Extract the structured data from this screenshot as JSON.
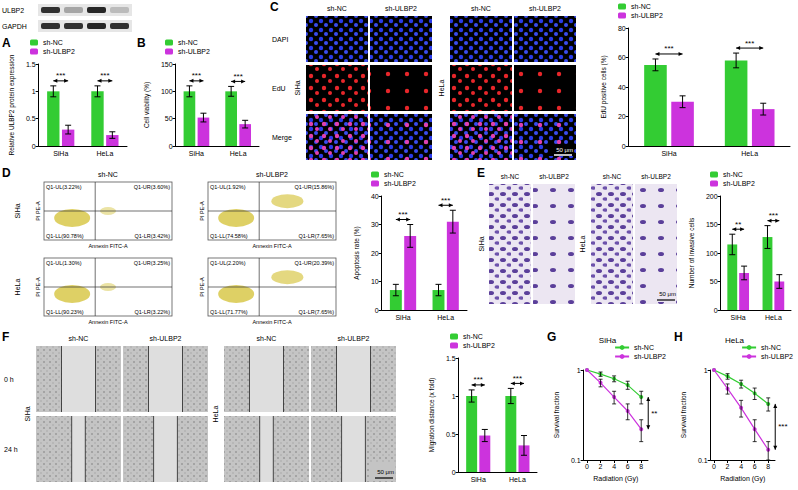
{
  "chart_data": [
    {
      "panel": "A",
      "type": "bar",
      "y_label": "Relative ULBP2 protein expression",
      "categories": [
        "SiHa",
        "HeLa"
      ],
      "series": [
        {
          "name": "sh-NC",
          "color": "#33cc33",
          "values": [
            1.0,
            1.0
          ],
          "errors": [
            0.1,
            0.1
          ]
        },
        {
          "name": "sh-ULBP2",
          "color": "#cc33dd",
          "values": [
            0.3,
            0.2
          ],
          "errors": [
            0.08,
            0.06
          ]
        }
      ],
      "annotations": [
        "***",
        "***"
      ],
      "ylim": [
        0,
        1.5
      ],
      "yticks": [
        0,
        0.5,
        1,
        1.5
      ],
      "legend": "top-left",
      "grid": false
    },
    {
      "panel": "B",
      "type": "bar",
      "y_label": "Cell viability (%)",
      "categories": [
        "SiHa",
        "HeLa"
      ],
      "series": [
        {
          "name": "sh-NC",
          "color": "#33cc33",
          "values": [
            100,
            100
          ],
          "errors": [
            10,
            9
          ]
        },
        {
          "name": "sh-ULBP2",
          "color": "#cc33dd",
          "values": [
            52,
            40
          ],
          "errors": [
            8,
            7
          ]
        }
      ],
      "annotations": [
        "***",
        "***"
      ],
      "ylim": [
        0,
        150
      ],
      "yticks": [
        0,
        50,
        100,
        150
      ],
      "legend": "top-left",
      "grid": false
    },
    {
      "type": "bar",
      "y_label": "EdU positive cells (%)",
      "categories": [
        "SiHa",
        "HeLa"
      ],
      "series": [
        {
          "name": "sh-NC",
          "color": "#33cc33",
          "values": [
            55,
            58
          ],
          "errors": [
            4,
            5
          ]
        },
        {
          "name": "sh-ULBP2",
          "color": "#cc33dd",
          "values": [
            30,
            25
          ],
          "errors": [
            4,
            4
          ]
        }
      ],
      "annotations": [
        "***",
        "***"
      ],
      "ylim": [
        0,
        80
      ],
      "yticks": [
        0,
        20,
        40,
        60,
        80
      ],
      "legend": "top-left",
      "grid": false
    },
    {
      "type": "bar",
      "y_label": "Apoptosis rate (%)",
      "categories": [
        "SiHa",
        "HeLa"
      ],
      "series": [
        {
          "name": "sh-NC",
          "color": "#33cc33",
          "values": [
            7,
            7
          ],
          "errors": [
            2,
            2
          ]
        },
        {
          "name": "sh-ULBP2",
          "color": "#cc33dd",
          "values": [
            26,
            31
          ],
          "errors": [
            4,
            4
          ]
        }
      ],
      "annotations": [
        "***",
        "***"
      ],
      "ylim": [
        0,
        40
      ],
      "yticks": [
        0,
        10,
        20,
        30,
        40
      ],
      "legend": "top-left",
      "grid": false
    },
    {
      "type": "bar",
      "y_label": "Number of invasive cells",
      "categories": [
        "SiHa",
        "HeLa"
      ],
      "series": [
        {
          "name": "sh-NC",
          "color": "#33cc33",
          "values": [
            115,
            128
          ],
          "errors": [
            18,
            20
          ]
        },
        {
          "name": "sh-ULBP2",
          "color": "#cc33dd",
          "values": [
            65,
            50
          ],
          "errors": [
            12,
            12
          ]
        }
      ],
      "annotations": [
        "**",
        "***"
      ],
      "ylim": [
        0,
        200
      ],
      "yticks": [
        0,
        50,
        100,
        150,
        200
      ],
      "legend": "top-left",
      "grid": false
    },
    {
      "type": "bar",
      "y_label": "Migration distance (x fold)",
      "categories": [
        "SiHa",
        "HeLa"
      ],
      "series": [
        {
          "name": "sh-NC",
          "color": "#33cc33",
          "values": [
            1.0,
            1.0
          ],
          "errors": [
            0.08,
            0.1
          ]
        },
        {
          "name": "sh-ULBP2",
          "color": "#cc33dd",
          "values": [
            0.48,
            0.35
          ],
          "errors": [
            0.08,
            0.13
          ]
        }
      ],
      "annotations": [
        "***",
        "***"
      ],
      "ylim": [
        0,
        1.5
      ],
      "yticks": [
        0,
        0.5,
        1,
        1.5
      ],
      "legend": "top-left",
      "grid": false
    },
    {
      "panel": "G",
      "type": "line",
      "title": "SiHa",
      "x_label": "Radiation (Gy)",
      "y_label": "Survival fraction",
      "x": [
        0,
        2,
        4,
        6,
        8
      ],
      "series": [
        {
          "name": "sh-NC",
          "color": "#33cc33",
          "values": [
            1.0,
            0.9,
            0.8,
            0.68,
            0.5
          ],
          "errors": [
            0,
            0.05,
            0.06,
            0.07,
            0.08
          ]
        },
        {
          "name": "sh-ULBP2",
          "color": "#cc33dd",
          "values": [
            1.0,
            0.72,
            0.5,
            0.35,
            0.22
          ],
          "errors": [
            0,
            0.07,
            0.08,
            0.07,
            0.06
          ]
        }
      ],
      "annotations": [
        "**"
      ],
      "xlim": [
        -0.5,
        9
      ],
      "xticks": [
        0,
        2,
        4,
        6,
        8
      ],
      "ylim": [
        0.1,
        1
      ],
      "yticks": [
        0.1,
        1
      ],
      "log": "y",
      "marker": "circle",
      "line_style": "solid",
      "legend": "top-right",
      "grid": false
    },
    {
      "panel": "H",
      "type": "line",
      "title": "HeLa",
      "x_label": "Radiation (Gy)",
      "y_label": "Survival fraction",
      "x": [
        0,
        2,
        4,
        6,
        8
      ],
      "series": [
        {
          "name": "sh-NC",
          "color": "#33cc33",
          "values": [
            1.0,
            0.85,
            0.7,
            0.55,
            0.42
          ],
          "errors": [
            0,
            0.06,
            0.07,
            0.08,
            0.07
          ]
        },
        {
          "name": "sh-ULBP2",
          "color": "#cc33dd",
          "values": [
            1.0,
            0.62,
            0.38,
            0.22,
            0.13
          ],
          "errors": [
            0,
            0.08,
            0.08,
            0.06,
            0.03
          ]
        }
      ],
      "annotations": [
        "***"
      ],
      "xlim": [
        -0.5,
        9
      ],
      "xticks": [
        0,
        2,
        4,
        6,
        8
      ],
      "ylim": [
        0.1,
        1
      ],
      "yticks": [
        0.1,
        1
      ],
      "log": "y",
      "marker": "circle",
      "line_style": "solid",
      "legend": "top-right",
      "grid": false
    }
  ],
  "image_panels": {
    "blot": {
      "rows": [
        "ULBP2",
        "GAPDH"
      ]
    },
    "C": {
      "panel": "C",
      "rows": [
        "DAPI",
        "EdU",
        "Merge"
      ],
      "cell_lines": [
        "SiHa",
        "HeLa"
      ],
      "groups": [
        "sh-NC",
        "sh-ULBP2"
      ],
      "scale_bar": "50 μm"
    },
    "D": {
      "panel": "D",
      "cell_lines": [
        "SiHa",
        "HeLa"
      ],
      "groups": [
        "sh-NC",
        "sh-ULBP2"
      ],
      "x_label": "Annexin FITC-A",
      "y_label": "PI PE-A",
      "quadrants": [
        [
          [
            "Q1-UL(3.22%)",
            "Q1-UR(3.60%)",
            "Q1-LL(90.78%)",
            "Q1-LR(3.42%)"
          ],
          [
            "Q1-UL(1.92%)",
            "Q1-UR(15.86%)",
            "Q1-LL(74.58%)",
            "Q1-LR(7.65%)"
          ]
        ],
        [
          [
            "Q1-UL(1.30%)",
            "Q1-UR(3.25%)",
            "Q1-LL(90.23%)",
            "Q1-LR(3.22%)"
          ],
          [
            "Q1-UL(2.20%)",
            "Q1-UR(20.39%)",
            "Q1-LL(71.77%)",
            "Q1-LR(7.65%)"
          ]
        ]
      ]
    },
    "E": {
      "panel": "E",
      "cell_lines": [
        "SiHa",
        "HeLa"
      ],
      "groups": [
        "sh-NC",
        "sh-ULBP2"
      ],
      "scale_bar": "50 μm"
    },
    "F": {
      "panel": "F",
      "cell_lines": [
        "SiHa",
        "HeLa"
      ],
      "groups": [
        "sh-NC",
        "sh-ULBP2"
      ],
      "times": [
        "0 h",
        "24 h"
      ],
      "scale_bar": "50 μm"
    }
  }
}
